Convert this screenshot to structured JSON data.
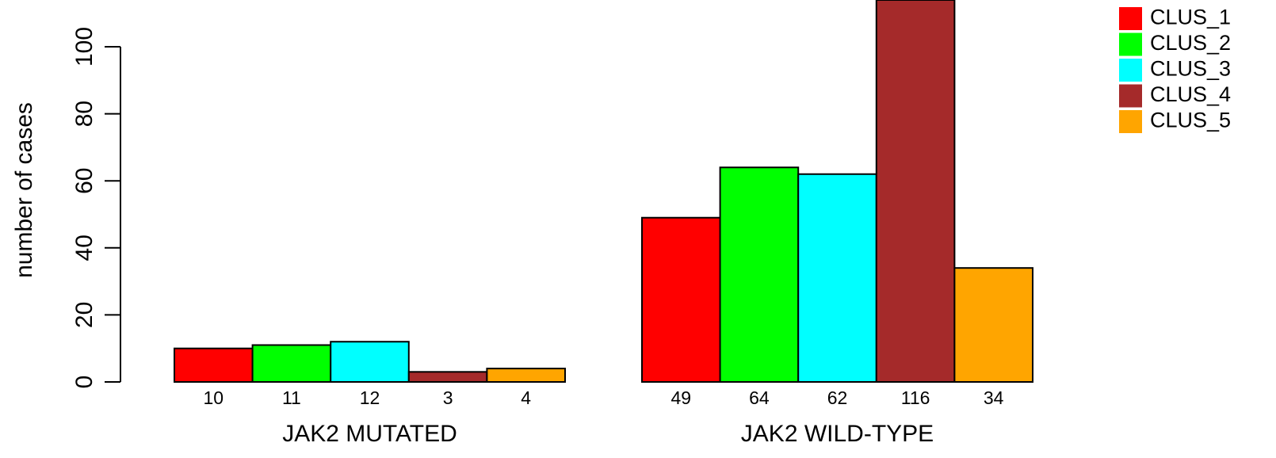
{
  "chart_data": {
    "type": "bar",
    "title": "",
    "ylabel": "number of cases",
    "ylim": [
      0,
      100
    ],
    "y_ticks": [
      "0",
      "20",
      "40",
      "60",
      "80",
      "100"
    ],
    "groups": [
      {
        "name": "JAK2 MUTATED",
        "values": [
          10,
          11,
          12,
          3,
          4
        ],
        "value_labels": [
          "10",
          "11",
          "12",
          "3",
          "4"
        ]
      },
      {
        "name": "JAK2 WILD-TYPE",
        "values": [
          49,
          64,
          62,
          116,
          34
        ],
        "value_labels": [
          "49",
          "64",
          "62",
          "116",
          "34"
        ]
      }
    ],
    "series": [
      {
        "name": "CLUS_1",
        "color": "#ff0000"
      },
      {
        "name": "CLUS_2",
        "color": "#00ff00"
      },
      {
        "name": "CLUS_3",
        "color": "#00ffff"
      },
      {
        "name": "CLUS_4",
        "color": "#a52a2a"
      },
      {
        "name": "CLUS_5",
        "color": "#ffa500"
      }
    ],
    "legend_position": "top-right",
    "grid": false
  }
}
